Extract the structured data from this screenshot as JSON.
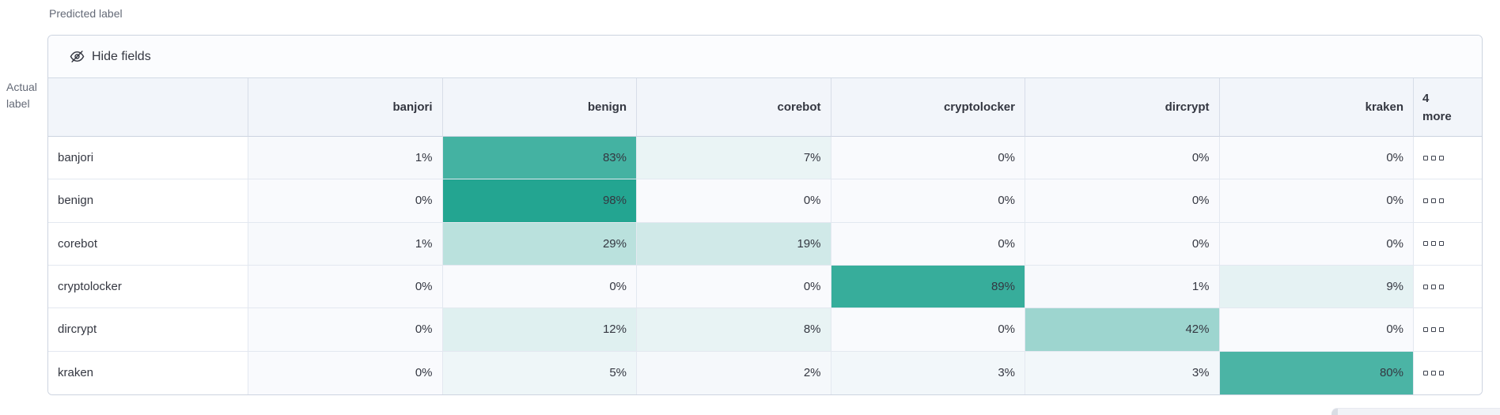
{
  "page": {
    "predicted_axis_label": "Predicted label",
    "actual_axis_label": "Actual label"
  },
  "toolbar": {
    "hide_fields_label": "Hide fields",
    "icon": "eye-closed-icon"
  },
  "matrix": {
    "columns": [
      "banjori",
      "benign",
      "corebot",
      "cryptolocker",
      "dircrypt",
      "kraken"
    ],
    "more_column": {
      "count": "4",
      "label": "more"
    },
    "rows": [
      {
        "label": "banjori",
        "values": [
          "1%",
          "83%",
          "7%",
          "0%",
          "0%",
          "0%"
        ]
      },
      {
        "label": "benign",
        "values": [
          "0%",
          "98%",
          "0%",
          "0%",
          "0%",
          "0%"
        ]
      },
      {
        "label": "corebot",
        "values": [
          "1%",
          "29%",
          "19%",
          "0%",
          "0%",
          "0%"
        ]
      },
      {
        "label": "cryptolocker",
        "values": [
          "0%",
          "0%",
          "0%",
          "89%",
          "1%",
          "9%"
        ]
      },
      {
        "label": "dircrypt",
        "values": [
          "0%",
          "12%",
          "8%",
          "0%",
          "42%",
          "0%"
        ]
      },
      {
        "label": "kraken",
        "values": [
          "0%",
          "5%",
          "2%",
          "3%",
          "3%",
          "80%"
        ]
      }
    ],
    "more_cell_icon": "boxes-horizontal-icon"
  },
  "colors": {
    "heat_accent": "#1FA38F",
    "heat_base": "#F9FAFD",
    "header_bg": "#F2F5FA",
    "panel_border": "#CDD4E0"
  }
}
